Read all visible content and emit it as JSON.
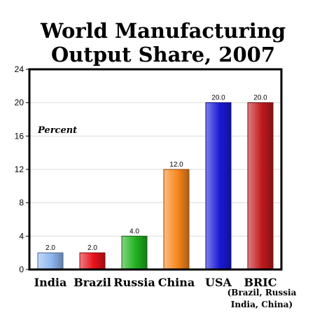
{
  "chart_data": {
    "type": "bar",
    "title_lines": [
      "World Manufacturing",
      "Output Share, 2007"
    ],
    "ylabel": "Percent",
    "xlabel": "",
    "ylim": [
      0,
      24
    ],
    "yticks": [
      "0",
      "4",
      "8",
      "12",
      "16",
      "20",
      "24"
    ],
    "grid": true,
    "legend": "none",
    "categories": [
      "India",
      "Brazil",
      "Russia",
      "China",
      "USA",
      "BRIC"
    ],
    "values": [
      2.0,
      2.0,
      4.0,
      12.0,
      20.0,
      20.0
    ],
    "value_labels": [
      "2.0",
      "2.0",
      "4.0",
      "12.0",
      "20.0",
      "20.0"
    ],
    "bric_note": [
      "(Brazil, Russia",
      "India, China)"
    ],
    "colors": [
      "#8fb6f0",
      "#e8121b",
      "#21b11f",
      "#f7861c",
      "#1a1ad8",
      "#c0191e"
    ]
  }
}
